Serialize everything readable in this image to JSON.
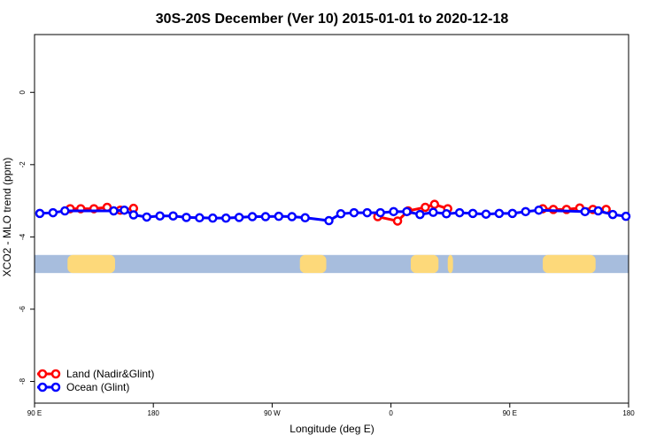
{
  "chart_data": {
    "type": "line",
    "title": "30S-20S December (Ver 10)   2015-01-01 to 2020-12-18",
    "xlabel": "Longitude (deg E)",
    "ylabel": "XCO2 - MLO trend (ppm)",
    "xlim": [
      90,
      540
    ],
    "ylim": [
      -8.6,
      1.6
    ],
    "x_ticks": [
      {
        "value": 90,
        "label": "90 E"
      },
      {
        "value": 180,
        "label": "180"
      },
      {
        "value": 270,
        "label": "90 W"
      },
      {
        "value": 360,
        "label": "0"
      },
      {
        "value": 450,
        "label": "90 E"
      },
      {
        "value": 540,
        "label": "180"
      }
    ],
    "y_ticks": [
      {
        "value": 0,
        "label": "0"
      },
      {
        "value": -2,
        "label": "-2"
      },
      {
        "value": -4,
        "label": "-4"
      },
      {
        "value": -6,
        "label": "-6"
      },
      {
        "value": -8,
        "label": "-8"
      }
    ],
    "legend": {
      "position": "bottom-left"
    },
    "colors": {
      "land": "#ff0000",
      "ocean": "#0000ff",
      "ocean_strip": "#a7bddd",
      "land_strip": "#fdd97a"
    },
    "land_strip_segments": [
      [
        115,
        151
      ],
      [
        291,
        311
      ],
      [
        375,
        396
      ],
      [
        403,
        407
      ],
      [
        475,
        515
      ]
    ],
    "series": [
      {
        "name": "Land (Nadir&Glint)",
        "color": "#ff0000",
        "points": [
          [
            117,
            -3.22
          ],
          [
            125,
            -3.22
          ],
          [
            135,
            -3.22
          ],
          [
            145,
            -3.18
          ],
          [
            155,
            -3.26
          ],
          [
            165,
            -3.21
          ],
          [
            350,
            -3.44
          ],
          [
            365,
            -3.56
          ],
          [
            373,
            -3.28
          ],
          [
            386,
            -3.18
          ],
          [
            393,
            -3.1
          ],
          [
            403,
            -3.22
          ],
          [
            475,
            -3.22
          ],
          [
            483,
            -3.24
          ],
          [
            493,
            -3.24
          ],
          [
            503,
            -3.2
          ],
          [
            513,
            -3.24
          ],
          [
            523,
            -3.24
          ]
        ],
        "segments": [
          [
            0,
            1,
            2,
            3,
            4,
            5
          ],
          [
            6,
            7,
            8,
            9,
            10,
            11
          ],
          [
            12,
            13,
            14,
            15,
            16,
            17
          ]
        ]
      },
      {
        "name": "Ocean (Glint)",
        "color": "#0000ff",
        "points": [
          [
            94,
            -3.35
          ],
          [
            104,
            -3.33
          ],
          [
            113,
            -3.28
          ],
          [
            150,
            -3.28
          ],
          [
            158,
            -3.26
          ],
          [
            165,
            -3.39
          ],
          [
            175,
            -3.45
          ],
          [
            185,
            -3.42
          ],
          [
            195,
            -3.42
          ],
          [
            205,
            -3.46
          ],
          [
            215,
            -3.47
          ],
          [
            225,
            -3.48
          ],
          [
            235,
            -3.48
          ],
          [
            245,
            -3.46
          ],
          [
            255,
            -3.44
          ],
          [
            265,
            -3.44
          ],
          [
            275,
            -3.43
          ],
          [
            285,
            -3.44
          ],
          [
            295,
            -3.47
          ],
          [
            313,
            -3.55
          ],
          [
            322,
            -3.36
          ],
          [
            332,
            -3.33
          ],
          [
            342,
            -3.33
          ],
          [
            352,
            -3.33
          ],
          [
            362,
            -3.3
          ],
          [
            372,
            -3.3
          ],
          [
            382,
            -3.38
          ],
          [
            392,
            -3.32
          ],
          [
            402,
            -3.36
          ],
          [
            412,
            -3.33
          ],
          [
            422,
            -3.35
          ],
          [
            432,
            -3.37
          ],
          [
            442,
            -3.35
          ],
          [
            452,
            -3.35
          ],
          [
            462,
            -3.3
          ],
          [
            472,
            -3.26
          ],
          [
            507,
            -3.3
          ],
          [
            517,
            -3.28
          ],
          [
            528,
            -3.38
          ],
          [
            538,
            -3.43
          ]
        ],
        "segments": [
          [
            0,
            1,
            2,
            3,
            4,
            5,
            6,
            7,
            8,
            9,
            10,
            11,
            12,
            13,
            14,
            15,
            16,
            17,
            18,
            19,
            20,
            21,
            22,
            23,
            24,
            25,
            26,
            27,
            28,
            29,
            30,
            31,
            32,
            33,
            34,
            35,
            36,
            37,
            38,
            39
          ]
        ]
      }
    ]
  }
}
